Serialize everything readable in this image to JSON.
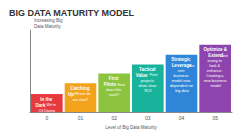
{
  "chart_data": {
    "type": "bar",
    "title": "BIG DATA MATURITY MODEL",
    "x_label": "Level of Big Data Maturity",
    "y_label": "Increasing Big Data Maturity",
    "categories": [
      "0",
      "01",
      "02",
      "03",
      "04",
      "05"
    ],
    "values": [
      22,
      35,
      47,
      58,
      70,
      82
    ],
    "colors": [
      "#e8393e",
      "#f2a31b",
      "#8cc43f",
      "#19b39b",
      "#2f86d8",
      "#8e44ad"
    ],
    "bar_titles": [
      "In the Dark",
      "Catching Up",
      "First Pilots",
      "Tactical Value",
      "Strategic Leverage",
      "Optimize & Extend"
    ],
    "bar_descriptions": [
      "We're Oil Diamo",
      "Where do we start?",
      "How does this work?",
      "First projects show clear ROI",
      "Current business model now dependent on big data",
      "Continuing to look & enhance. Creating a new business model"
    ],
    "ylim": [
      0,
      100
    ],
    "tick_labels": "x",
    "grid": false
  }
}
